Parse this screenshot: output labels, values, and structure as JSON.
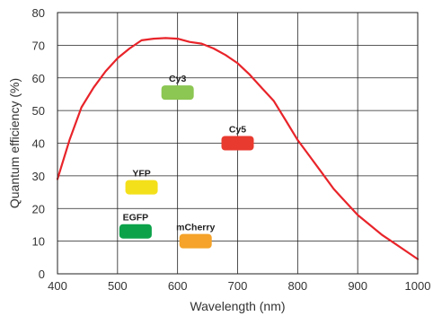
{
  "chart_data": {
    "type": "line",
    "xlabel": "Wavelength (nm)",
    "ylabel": "Quantum efficiency (%)",
    "xlim": [
      400,
      1000
    ],
    "ylim": [
      0,
      80
    ],
    "xticks": [
      400,
      500,
      600,
      700,
      800,
      900,
      1000
    ],
    "yticks": [
      0,
      10,
      20,
      30,
      40,
      50,
      60,
      70,
      80
    ],
    "grid": true,
    "series": [
      {
        "color": "#e8242a",
        "x": [
          400,
          420,
          440,
          460,
          480,
          500,
          520,
          540,
          560,
          580,
          600,
          620,
          640,
          660,
          680,
          700,
          720,
          740,
          760,
          780,
          800,
          820,
          840,
          860,
          880,
          900,
          920,
          940,
          960,
          980,
          1000
        ],
        "y": [
          29,
          41,
          51,
          57,
          62,
          66,
          69,
          71.5,
          72,
          72.2,
          72,
          71,
          70.5,
          69,
          67,
          64.5,
          61,
          57,
          53,
          47,
          41,
          36,
          31,
          26,
          22,
          18,
          15,
          12,
          9.5,
          7,
          4.5
        ]
      }
    ],
    "markers": [
      {
        "label": "Cy3",
        "x": 600,
        "y": 55.5,
        "color": "#8cc653"
      },
      {
        "label": "Cy5",
        "x": 700,
        "y": 40,
        "color": "#e83a2f"
      },
      {
        "label": "YFP",
        "x": 540,
        "y": 26.5,
        "color": "#f4e01a"
      },
      {
        "label": "EGFP",
        "x": 530,
        "y": 13,
        "color": "#0ca24a"
      },
      {
        "label": "mCherry",
        "x": 630,
        "y": 10,
        "color": "#f5a32a"
      }
    ]
  }
}
